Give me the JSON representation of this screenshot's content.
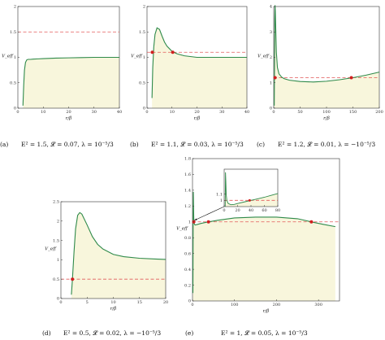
{
  "colors": {
    "curve": "#2f8a4a",
    "fill": "#f8f6dc",
    "energy_line": "#e25a5a",
    "marker": "#d11f1f",
    "axis": "#333333"
  },
  "chart_data": [
    {
      "id": "a",
      "type": "area",
      "xlabel": "r/β",
      "ylabel": "V_eff",
      "xlim": [
        0,
        40
      ],
      "ylim": [
        0,
        2
      ],
      "xticks": [
        "0",
        "10",
        "20",
        "30",
        "40"
      ],
      "yticks": [
        "0",
        "0.5",
        "1",
        "1.5",
        "2"
      ],
      "energy_level": 1.5,
      "markers": [],
      "curve": {
        "x": [
          2.0,
          2.3,
          2.6,
          3.0,
          3.5,
          4.0,
          5,
          6,
          8,
          10,
          15,
          20,
          25,
          30,
          35,
          40
        ],
        "y": [
          0.05,
          0.45,
          0.75,
          0.9,
          0.95,
          0.96,
          0.96,
          0.965,
          0.97,
          0.975,
          0.985,
          0.99,
          0.995,
          1.0,
          1.0,
          1.0
        ]
      },
      "caption_label": "(a)",
      "caption": "E² = 1.5, 𝓛 = 0.07, λ = 10⁻⁵/3"
    },
    {
      "id": "b",
      "type": "area",
      "xlabel": "r/β",
      "ylabel": "V_eff",
      "xlim": [
        0,
        40
      ],
      "ylim": [
        0,
        2
      ],
      "xticks": [
        "0",
        "10",
        "20",
        "30",
        "40"
      ],
      "yticks": [
        "0",
        "0.5",
        "1",
        "1.5",
        "2"
      ],
      "energy_level": 1.1,
      "markers": [
        {
          "x": 2.1,
          "y": 1.1
        },
        {
          "x": 10.3,
          "y": 1.1
        }
      ],
      "curve": {
        "x": [
          2.0,
          2.3,
          2.7,
          3.2,
          4.0,
          5.0,
          6.0,
          7.0,
          8.0,
          10,
          12,
          15,
          20,
          25,
          30,
          35,
          40
        ],
        "y": [
          0.2,
          0.8,
          1.2,
          1.45,
          1.58,
          1.55,
          1.42,
          1.3,
          1.22,
          1.12,
          1.07,
          1.03,
          1.0,
          1.0,
          1.0,
          1.0,
          1.0
        ]
      },
      "caption_label": "(b)",
      "caption": "E² = 1.1, 𝓛 = 0.03, λ = 10⁻⁵/3"
    },
    {
      "id": "c",
      "type": "area",
      "xlabel": "r/β",
      "ylabel": "V_eff",
      "xlim": [
        0,
        200
      ],
      "ylim": [
        0,
        4
      ],
      "xticks": [
        "0",
        "50",
        "100",
        "150",
        "200"
      ],
      "yticks": [
        "0",
        "1",
        "2",
        "3",
        "4"
      ],
      "energy_level": 1.2,
      "markers": [
        {
          "x": 2.5,
          "y": 1.2
        },
        {
          "x": 147,
          "y": 1.2
        }
      ],
      "curve": {
        "x": [
          1.0,
          1.6,
          2.0,
          2.5,
          3.0,
          4.0,
          5.0,
          7,
          10,
          15,
          20,
          30,
          50,
          75,
          100,
          125,
          150,
          175,
          200
        ],
        "y": [
          0.1,
          2.0,
          3.5,
          4.05,
          3.8,
          3.0,
          2.2,
          1.6,
          1.35,
          1.22,
          1.16,
          1.1,
          1.05,
          1.03,
          1.06,
          1.12,
          1.2,
          1.3,
          1.42
        ]
      },
      "caption_label": "(c)",
      "caption": "E² = 1.2, 𝓛 = 0.01, λ = −10⁻⁵/3"
    },
    {
      "id": "d",
      "type": "area",
      "xlabel": "r/β",
      "ylabel": "V_eff",
      "xlim": [
        0,
        20
      ],
      "ylim": [
        0,
        2.5
      ],
      "xticks": [
        "0",
        "5",
        "10",
        "15",
        "20"
      ],
      "yticks": [
        "0",
        "0.5",
        "1",
        "1.5",
        "2",
        "2.5"
      ],
      "energy_level": 0.5,
      "markers": [
        {
          "x": 2.2,
          "y": 0.5
        }
      ],
      "curve": {
        "x": [
          2.0,
          2.2,
          2.5,
          2.8,
          3.2,
          3.6,
          4.0,
          5,
          6,
          7,
          8,
          10,
          12,
          15,
          18,
          20
        ],
        "y": [
          0.1,
          0.5,
          1.2,
          1.8,
          2.15,
          2.22,
          2.18,
          1.9,
          1.6,
          1.4,
          1.28,
          1.14,
          1.08,
          1.04,
          1.02,
          1.01
        ]
      },
      "caption_label": "(d)",
      "caption": "E² = 0.5, 𝓛 = 0.02, λ = −10⁻⁵/3"
    },
    {
      "id": "e",
      "type": "area",
      "xlabel": "r/β",
      "ylabel": "V_eff",
      "xlim": [
        0,
        350
      ],
      "ylim": [
        0,
        1.8
      ],
      "xticks": [
        "0",
        "100",
        "200",
        "300"
      ],
      "yticks": [
        "0",
        "0.2",
        "0.4",
        "0.6",
        "0.8",
        "1",
        "1.2",
        "1.4",
        "1.6",
        "1.8"
      ],
      "energy_level": 1.0,
      "markers": [
        {
          "x": 3,
          "y": 1.0
        },
        {
          "x": 38,
          "y": 1.0
        },
        {
          "x": 283,
          "y": 1.0
        }
      ],
      "curve": {
        "x": [
          1.0,
          1.5,
          2.0,
          2.5,
          3.0,
          4.0,
          6,
          10,
          20,
          38,
          60,
          100,
          150,
          200,
          250,
          283,
          310,
          340
        ],
        "y": [
          0.1,
          1.0,
          1.38,
          1.2,
          1.05,
          0.98,
          0.96,
          0.965,
          0.98,
          1.0,
          1.02,
          1.05,
          1.06,
          1.06,
          1.04,
          1.0,
          0.97,
          0.94
        ]
      },
      "inset": {
        "xlim": [
          0,
          80
        ],
        "ylim": [
          0.9,
          1.5
        ],
        "xticks": [
          "0",
          "20",
          "40",
          "60",
          "80"
        ],
        "yticks": [
          "1",
          "1.1"
        ],
        "markers": [
          {
            "x": 38,
            "y": 1.0
          }
        ],
        "curve": {
          "x": [
            1.5,
            2.0,
            2.5,
            3.0,
            4,
            6,
            10,
            15,
            20,
            30,
            40,
            50,
            60,
            70,
            80
          ],
          "y": [
            0.9,
            1.45,
            1.3,
            1.1,
            1.0,
            0.95,
            0.93,
            0.935,
            0.95,
            0.975,
            1.0,
            1.025,
            1.05,
            1.08,
            1.11
          ]
        }
      },
      "caption_label": "(e)",
      "caption": "E² = 1, 𝓛 = 0.05, λ = 10⁻⁵/3"
    }
  ]
}
